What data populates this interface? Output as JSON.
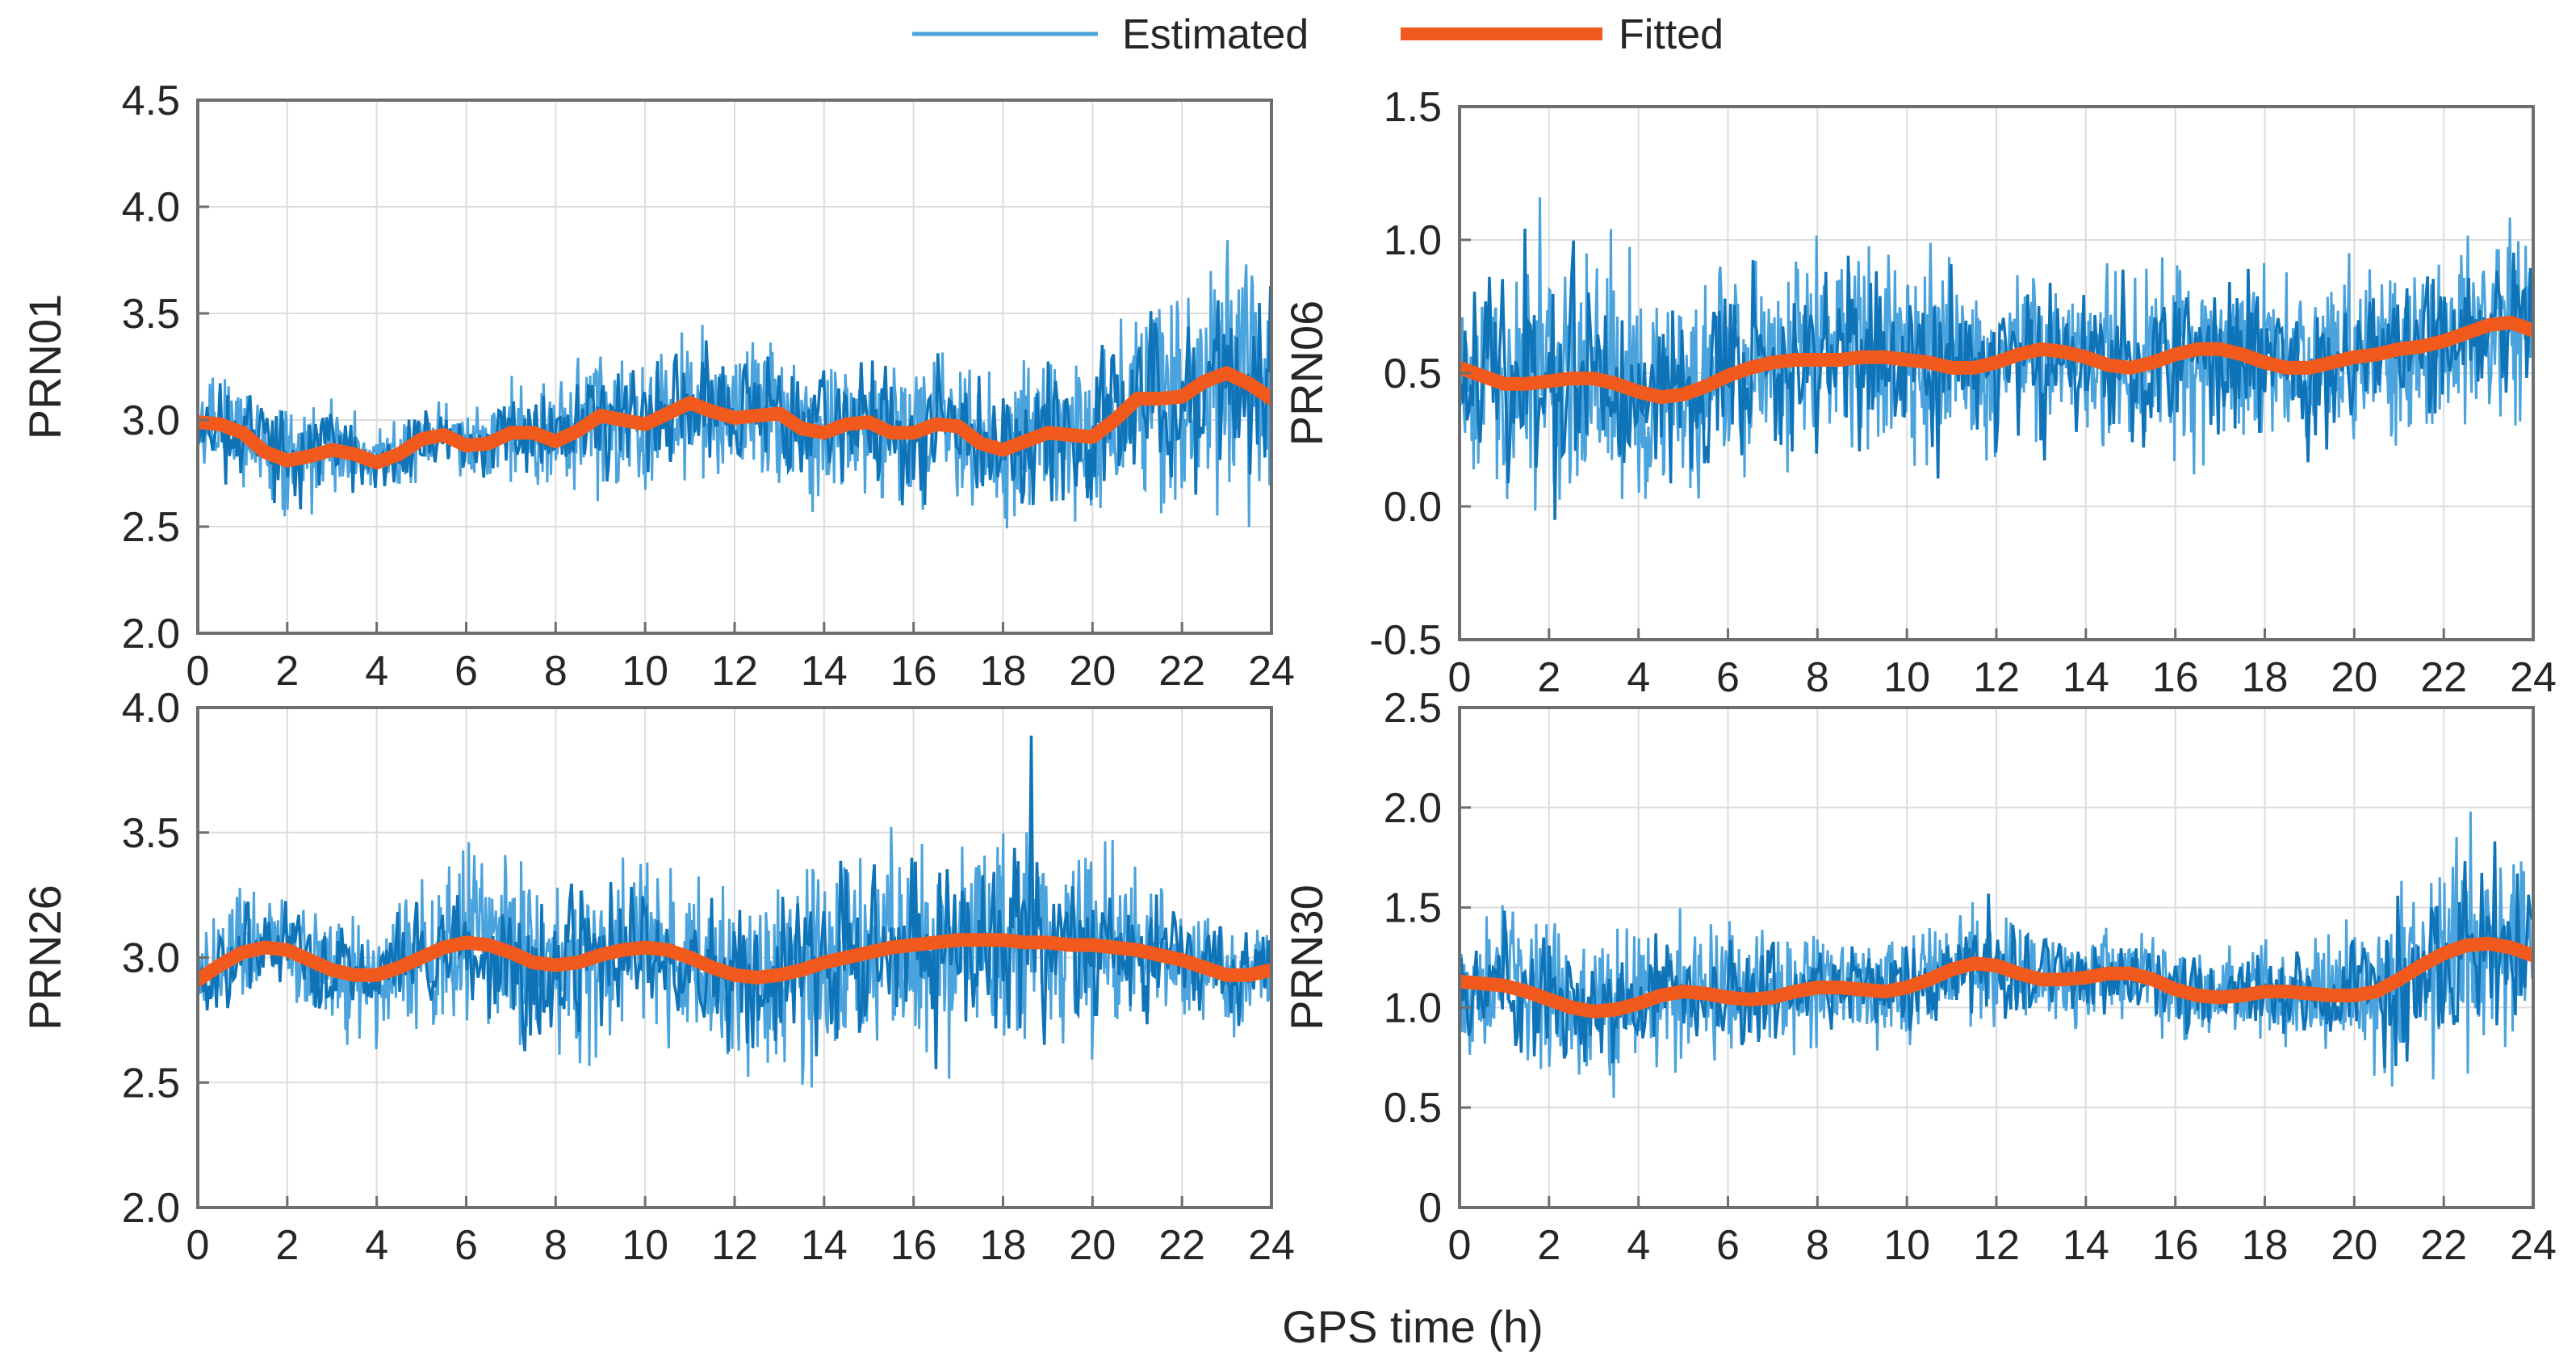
{
  "legend": {
    "estimated_label": "Estimated",
    "fitted_label": "Fitted"
  },
  "colors": {
    "estimated": "#0f73b8",
    "estimated_light": "#4aa3dc",
    "fitted": "#f25a1d",
    "grid": "#dcdcdc",
    "axes": "#6e6e6e"
  },
  "xlabel": "GPS time (h)",
  "chart_data": [
    {
      "type": "line",
      "id": "prn01",
      "ylabel": "PRN01",
      "xlim": [
        0,
        24
      ],
      "ylim": [
        2.0,
        4.5
      ],
      "xticks": [
        0,
        2,
        4,
        6,
        8,
        10,
        12,
        14,
        16,
        18,
        20,
        22,
        24
      ],
      "xtick_labels": [
        "0",
        "2",
        "4",
        "6",
        "8",
        "10",
        "12",
        "14",
        "16",
        "18",
        "20",
        "22",
        "24"
      ],
      "yticks": [
        2.0,
        2.5,
        3.0,
        3.5,
        4.0,
        4.5
      ],
      "ytick_labels": [
        "2.0",
        "2.5",
        "3.0",
        "3.5",
        "4.0",
        "4.5"
      ],
      "series": [
        {
          "name": "Estimated",
          "noise": [
            0.12,
            0.14,
            0.16,
            0.12,
            0.1,
            0.09,
            0.1,
            0.11,
            0.16,
            0.18,
            0.17,
            0.18,
            0.18,
            0.19,
            0.18,
            0.19,
            0.18,
            0.18,
            0.18,
            0.2,
            0.22,
            0.26,
            0.3,
            0.34,
            0.28
          ],
          "seed": 11
        },
        {
          "name": "Fitted",
          "x": [
            0,
            0.5,
            1,
            1.5,
            2,
            2.5,
            3,
            3.5,
            4,
            4.5,
            5,
            5.5,
            6,
            6.5,
            7,
            7.5,
            8,
            8.5,
            9,
            9.5,
            10,
            10.5,
            11,
            11.5,
            12,
            12.5,
            13,
            13.5,
            14,
            14.5,
            15,
            15.5,
            16,
            16.5,
            17,
            17.5,
            18,
            18.5,
            19,
            19.5,
            20,
            20.5,
            21,
            21.5,
            22,
            22.5,
            23,
            23.5,
            24
          ],
          "y": [
            2.99,
            2.98,
            2.94,
            2.85,
            2.81,
            2.83,
            2.86,
            2.84,
            2.8,
            2.84,
            2.91,
            2.93,
            2.88,
            2.89,
            2.94,
            2.94,
            2.9,
            2.95,
            3.02,
            3.0,
            2.98,
            3.03,
            3.08,
            3.04,
            3.01,
            3.02,
            3.03,
            2.96,
            2.94,
            2.98,
            2.99,
            2.94,
            2.94,
            2.98,
            2.97,
            2.89,
            2.86,
            2.9,
            2.94,
            2.93,
            2.92,
            3.0,
            3.1,
            3.1,
            3.11,
            3.18,
            3.22,
            3.17,
            3.1
          ]
        }
      ]
    },
    {
      "type": "line",
      "id": "prn06",
      "ylabel": "PRN06",
      "xlim": [
        0,
        24
      ],
      "ylim": [
        -0.5,
        1.5
      ],
      "xticks": [
        0,
        2,
        4,
        6,
        8,
        10,
        12,
        14,
        16,
        18,
        20,
        22,
        24
      ],
      "xtick_labels": [
        "0",
        "2",
        "4",
        "6",
        "8",
        "10",
        "12",
        "14",
        "16",
        "18",
        "20",
        "22",
        "24"
      ],
      "yticks": [
        -0.5,
        0.0,
        0.5,
        1.0,
        1.5
      ],
      "ytick_labels": [
        "-0.5",
        "0.0",
        "0.5",
        "1.0",
        "1.5"
      ],
      "series": [
        {
          "name": "Estimated",
          "noise": [
            0.24,
            0.24,
            0.26,
            0.25,
            0.24,
            0.22,
            0.2,
            0.2,
            0.22,
            0.22,
            0.22,
            0.2,
            0.18,
            0.18,
            0.18,
            0.19,
            0.19,
            0.2,
            0.19,
            0.18,
            0.18,
            0.18,
            0.18,
            0.2,
            0.24
          ],
          "seed": 23
        },
        {
          "name": "Fitted",
          "x": [
            0,
            0.5,
            1,
            1.5,
            2,
            2.5,
            3,
            3.5,
            4,
            4.5,
            5,
            5.5,
            6,
            6.5,
            7,
            7.5,
            8,
            8.5,
            9,
            9.5,
            10,
            10.5,
            11,
            11.5,
            12,
            12.5,
            13,
            13.5,
            14,
            14.5,
            15,
            15.5,
            16,
            16.5,
            17,
            17.5,
            18,
            18.5,
            19,
            19.5,
            20,
            20.5,
            21,
            21.5,
            22,
            22.5,
            23,
            23.5,
            24
          ],
          "y": [
            0.52,
            0.49,
            0.46,
            0.46,
            0.47,
            0.48,
            0.48,
            0.46,
            0.43,
            0.41,
            0.42,
            0.45,
            0.49,
            0.52,
            0.54,
            0.55,
            0.55,
            0.55,
            0.56,
            0.56,
            0.55,
            0.54,
            0.52,
            0.52,
            0.54,
            0.57,
            0.59,
            0.58,
            0.56,
            0.53,
            0.52,
            0.54,
            0.57,
            0.59,
            0.59,
            0.57,
            0.54,
            0.52,
            0.52,
            0.54,
            0.56,
            0.57,
            0.59,
            0.6,
            0.62,
            0.65,
            0.68,
            0.69,
            0.66
          ]
        }
      ]
    },
    {
      "type": "line",
      "id": "prn26",
      "ylabel": "PRN26",
      "xlim": [
        0,
        24
      ],
      "ylim": [
        2.0,
        4.0
      ],
      "xticks": [
        0,
        2,
        4,
        6,
        8,
        10,
        12,
        14,
        16,
        18,
        20,
        22,
        24
      ],
      "xtick_labels": [
        "0",
        "2",
        "4",
        "6",
        "8",
        "10",
        "12",
        "14",
        "16",
        "18",
        "20",
        "22",
        "24"
      ],
      "yticks": [
        2.0,
        2.5,
        3.0,
        3.5,
        4.0
      ],
      "ytick_labels": [
        "2.0",
        "2.5",
        "3.0",
        "3.5",
        "4.0"
      ],
      "series": [
        {
          "name": "Estimated",
          "noise": [
            0.11,
            0.12,
            0.13,
            0.12,
            0.13,
            0.15,
            0.2,
            0.22,
            0.21,
            0.19,
            0.18,
            0.17,
            0.19,
            0.22,
            0.23,
            0.24,
            0.24,
            0.25,
            0.23,
            0.22,
            0.2,
            0.17,
            0.14,
            0.12,
            0.11
          ],
          "seed": 37
        },
        {
          "name": "Fitted",
          "x": [
            0,
            0.5,
            1,
            1.5,
            2,
            2.5,
            3,
            3.5,
            4,
            4.5,
            5,
            5.5,
            6,
            6.5,
            7,
            7.5,
            8,
            8.5,
            9,
            9.5,
            10,
            10.5,
            11,
            11.5,
            12,
            12.5,
            13,
            13.5,
            14,
            14.5,
            15,
            15.5,
            16,
            16.5,
            17,
            17.5,
            18,
            18.5,
            19,
            19.5,
            20,
            20.5,
            21,
            21.5,
            22,
            22.5,
            23,
            23.5,
            24
          ],
          "y": [
            2.91,
            2.97,
            3.02,
            3.04,
            3.03,
            2.99,
            2.95,
            2.93,
            2.93,
            2.96,
            3.0,
            3.04,
            3.06,
            3.05,
            3.02,
            2.98,
            2.97,
            2.98,
            3.01,
            3.03,
            3.04,
            3.03,
            3.0,
            2.96,
            2.93,
            2.92,
            2.93,
            2.95,
            2.98,
            3.0,
            3.02,
            3.04,
            3.05,
            3.06,
            3.07,
            3.07,
            3.07,
            3.06,
            3.06,
            3.05,
            3.05,
            3.04,
            3.03,
            3.01,
            2.99,
            2.96,
            2.93,
            2.93,
            2.95
          ]
        }
      ]
    },
    {
      "type": "line",
      "id": "prn30",
      "ylabel": "PRN30",
      "xlim": [
        0,
        24
      ],
      "ylim": [
        0,
        2.5
      ],
      "xticks": [
        0,
        2,
        4,
        6,
        8,
        10,
        12,
        14,
        16,
        18,
        20,
        22,
        24
      ],
      "xtick_labels": [
        "0",
        "2",
        "4",
        "6",
        "8",
        "10",
        "12",
        "14",
        "16",
        "18",
        "20",
        "22",
        "24"
      ],
      "yticks": [
        0,
        0.5,
        1.0,
        1.5,
        2.0,
        2.5
      ],
      "ytick_labels": [
        "0",
        "0.5",
        "1.0",
        "1.5",
        "2.0",
        "2.5"
      ],
      "series": [
        {
          "name": "Estimated",
          "noise": [
            0.18,
            0.2,
            0.22,
            0.22,
            0.2,
            0.18,
            0.17,
            0.15,
            0.14,
            0.14,
            0.15,
            0.15,
            0.16,
            0.14,
            0.13,
            0.13,
            0.13,
            0.14,
            0.13,
            0.14,
            0.18,
            0.24,
            0.28,
            0.3,
            0.26
          ],
          "seed": 53
        },
        {
          "name": "Fitted",
          "x": [
            0,
            0.5,
            1,
            1.5,
            2,
            2.5,
            3,
            3.5,
            4,
            4.5,
            5,
            5.5,
            6,
            6.5,
            7,
            7.5,
            8,
            8.5,
            9,
            9.5,
            10,
            10.5,
            11,
            11.5,
            12,
            12.5,
            13,
            13.5,
            14,
            14.5,
            15,
            15.5,
            16,
            16.5,
            17,
            17.5,
            18,
            18.5,
            19,
            19.5,
            20,
            20.5,
            21,
            21.5,
            22,
            22.5,
            23,
            23.5,
            24
          ],
          "y": [
            1.13,
            1.12,
            1.11,
            1.08,
            1.04,
            1.0,
            0.98,
            0.99,
            1.02,
            1.06,
            1.08,
            1.07,
            1.05,
            1.04,
            1.05,
            1.08,
            1.1,
            1.1,
            1.09,
            1.08,
            1.1,
            1.14,
            1.19,
            1.22,
            1.21,
            1.17,
            1.14,
            1.14,
            1.15,
            1.17,
            1.17,
            1.14,
            1.09,
            1.06,
            1.05,
            1.06,
            1.08,
            1.08,
            1.07,
            1.06,
            1.06,
            1.08,
            1.14,
            1.21,
            1.27,
            1.31,
            1.32,
            1.3,
            1.26
          ]
        }
      ]
    }
  ]
}
